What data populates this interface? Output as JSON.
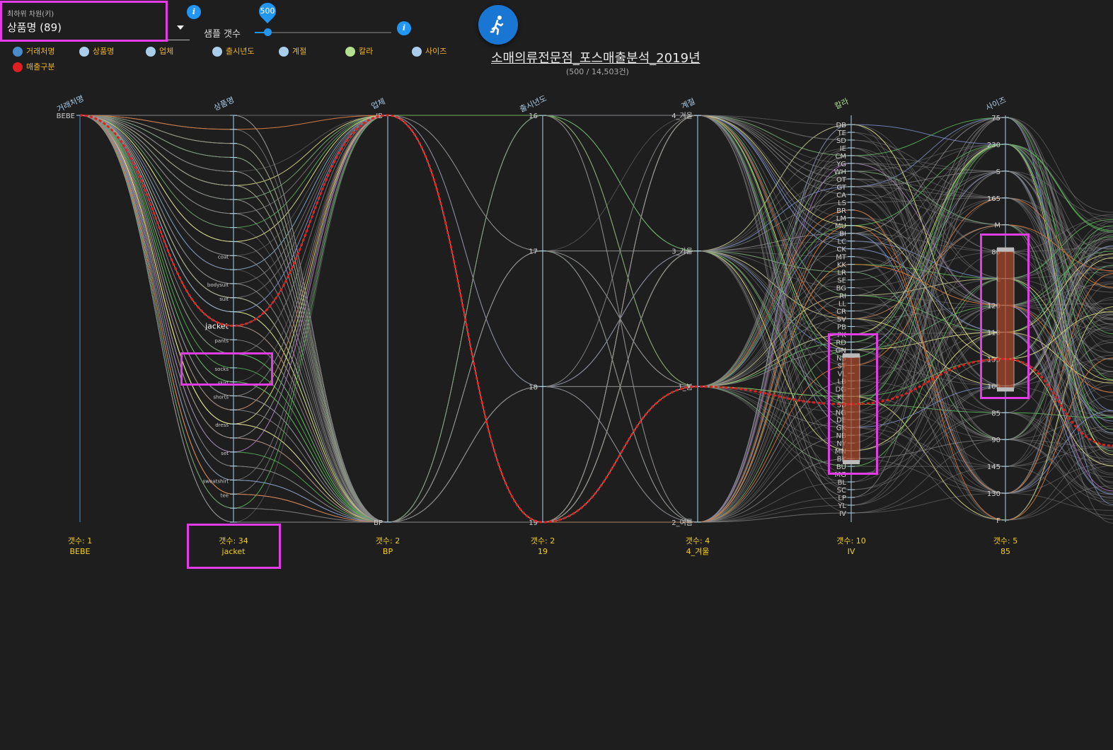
{
  "controls": {
    "dimension_label": "최하위 차원(키)",
    "dimension_value": "상품명 (89)",
    "sample_label": "샘플 갯수",
    "sample_value": "500",
    "sample_fraction": 0.08,
    "info_glyph": "i",
    "run_icon": "running-person-icon"
  },
  "legend": [
    {
      "label": "거래처명",
      "color": "#4a8bc9"
    },
    {
      "label": "상품명",
      "color": "#a9cdea"
    },
    {
      "label": "업체",
      "color": "#a9cdea"
    },
    {
      "label": "출시년도",
      "color": "#a9cdea"
    },
    {
      "label": "계절",
      "color": "#a9cdea"
    },
    {
      "label": "칼라",
      "color": "#b3e08f"
    },
    {
      "label": "사이즈",
      "color": "#a9cdea"
    },
    {
      "label": "매출구분",
      "color": "#e02020"
    }
  ],
  "header": {
    "title": "소매의류전문점_포스매출분석_2019년",
    "subtitle": "(500 / 14,503건)"
  },
  "chart_data": {
    "type": "parallel-coordinates",
    "axes": [
      {
        "name": "거래처명",
        "ticks": [
          "BEBE"
        ],
        "tick_labels": [
          "BEBE"
        ],
        "count_label": "갯수: 1",
        "selected": "BEBE"
      },
      {
        "name": "상품명",
        "ticks": [
          "a1",
          "a2",
          "a3",
          "a4",
          "a5",
          "a6",
          "a7",
          "a8",
          "a9",
          "a10",
          "coat",
          "a12",
          "bodysuit",
          "suit",
          "a15",
          "jacket",
          "pants",
          "a18",
          "socks",
          "skirt",
          "shorts",
          "a22",
          "dress",
          "a24",
          "set",
          "a26",
          "sweatshirt",
          "tee",
          "a29",
          "a30"
        ],
        "tick_labels": [
          "",
          "",
          "",
          "",
          "",
          "",
          "",
          "",
          "",
          "",
          "coat",
          "",
          "bodysuit",
          "suit",
          "",
          "jacket",
          "pants",
          "",
          "socks",
          "skirt",
          "shorts",
          "",
          "dress",
          "",
          "set",
          "",
          "sweatshirt",
          "tee",
          "",
          ""
        ],
        "count_label": "갯수: 34",
        "selected": "jacket"
      },
      {
        "name": "업체",
        "ticks": [
          "IB",
          "BP"
        ],
        "tick_labels": [
          "IB",
          "BP"
        ],
        "count_label": "갯수: 2",
        "selected": "BP"
      },
      {
        "name": "출시년도",
        "ticks": [
          "16",
          "17",
          "18",
          "19"
        ],
        "tick_labels": [
          "16",
          "17",
          "18",
          "19"
        ],
        "count_label": "갯수: 2",
        "selected": "19"
      },
      {
        "name": "계절",
        "ticks": [
          "4_겨울",
          "3_가을",
          "1_봄",
          "2_여름"
        ],
        "tick_labels": [
          "4_겨울",
          "3_가을",
          "1_봄",
          "2_여름"
        ],
        "count_label": "갯수: 4",
        "selected": "4_겨울"
      },
      {
        "name": "칼라",
        "ticks": [
          "DB",
          "TE",
          "SD",
          "IE",
          "CM",
          "YG",
          "WH",
          "OT",
          "GT",
          "CA",
          "LS",
          "BR",
          "LM",
          "MU",
          "BI",
          "LC",
          "CK",
          "MT",
          "KK",
          "LR",
          "SE",
          "BG",
          "RI",
          "LL",
          "CR",
          "SV",
          "PB",
          "PK",
          "RD",
          "GN",
          "NS",
          "ST",
          "VL",
          "LB",
          "DG",
          "KE",
          "SB",
          "NG",
          "DE",
          "GK",
          "NB",
          "NY",
          "MN",
          "BK",
          "BU",
          "MG",
          "BL",
          "SC",
          "LP",
          "YL",
          "IV"
        ],
        "tick_labels": [
          "DB",
          "TE",
          "SD",
          "IE",
          "CM",
          "YG",
          "WH",
          "OT",
          "GT",
          "CA",
          "LS",
          "BR",
          "LM",
          "MU",
          "BI",
          "LC",
          "CK",
          "MT",
          "KK",
          "LR",
          "SE",
          "BG",
          "RI",
          "LL",
          "CR",
          "SV",
          "PB",
          "PK",
          "RD",
          "GN",
          "NS",
          "ST",
          "VL",
          "LB",
          "DG",
          "KE",
          "SB",
          "NG",
          "DE",
          "GK",
          "NB",
          "NY",
          "MN",
          "BK",
          "BU",
          "MG",
          "BL",
          "SC",
          "LP",
          "YL",
          "IV"
        ],
        "count_label": "갯수: 10",
        "selected": "IV",
        "brush": [
          "NS",
          "BK"
        ]
      },
      {
        "name": "사이즈",
        "ticks": [
          "75",
          "230",
          "S",
          "165",
          "M",
          "80",
          "L",
          "120",
          "110",
          "155",
          "100",
          "85",
          "90",
          "145",
          "130",
          "F"
        ],
        "tick_labels": [
          "75",
          "230",
          "S",
          "165",
          "M",
          "80",
          "L",
          "120",
          "110",
          "155",
          "100",
          "85",
          "90",
          "145",
          "130",
          "F"
        ],
        "count_label": "갯수: 5",
        "selected": "85",
        "brush": [
          "80",
          "100"
        ]
      }
    ],
    "highlighted_path": [
      "BEBE",
      "jacket",
      "IB",
      "19",
      "1_봄",
      "SB",
      "155"
    ],
    "series_colors": [
      "#8a8a8a",
      "#5cb85c",
      "#e5e58a",
      "#e07b39",
      "#7b8fc9",
      "#b37bc9",
      "#e02020"
    ]
  }
}
